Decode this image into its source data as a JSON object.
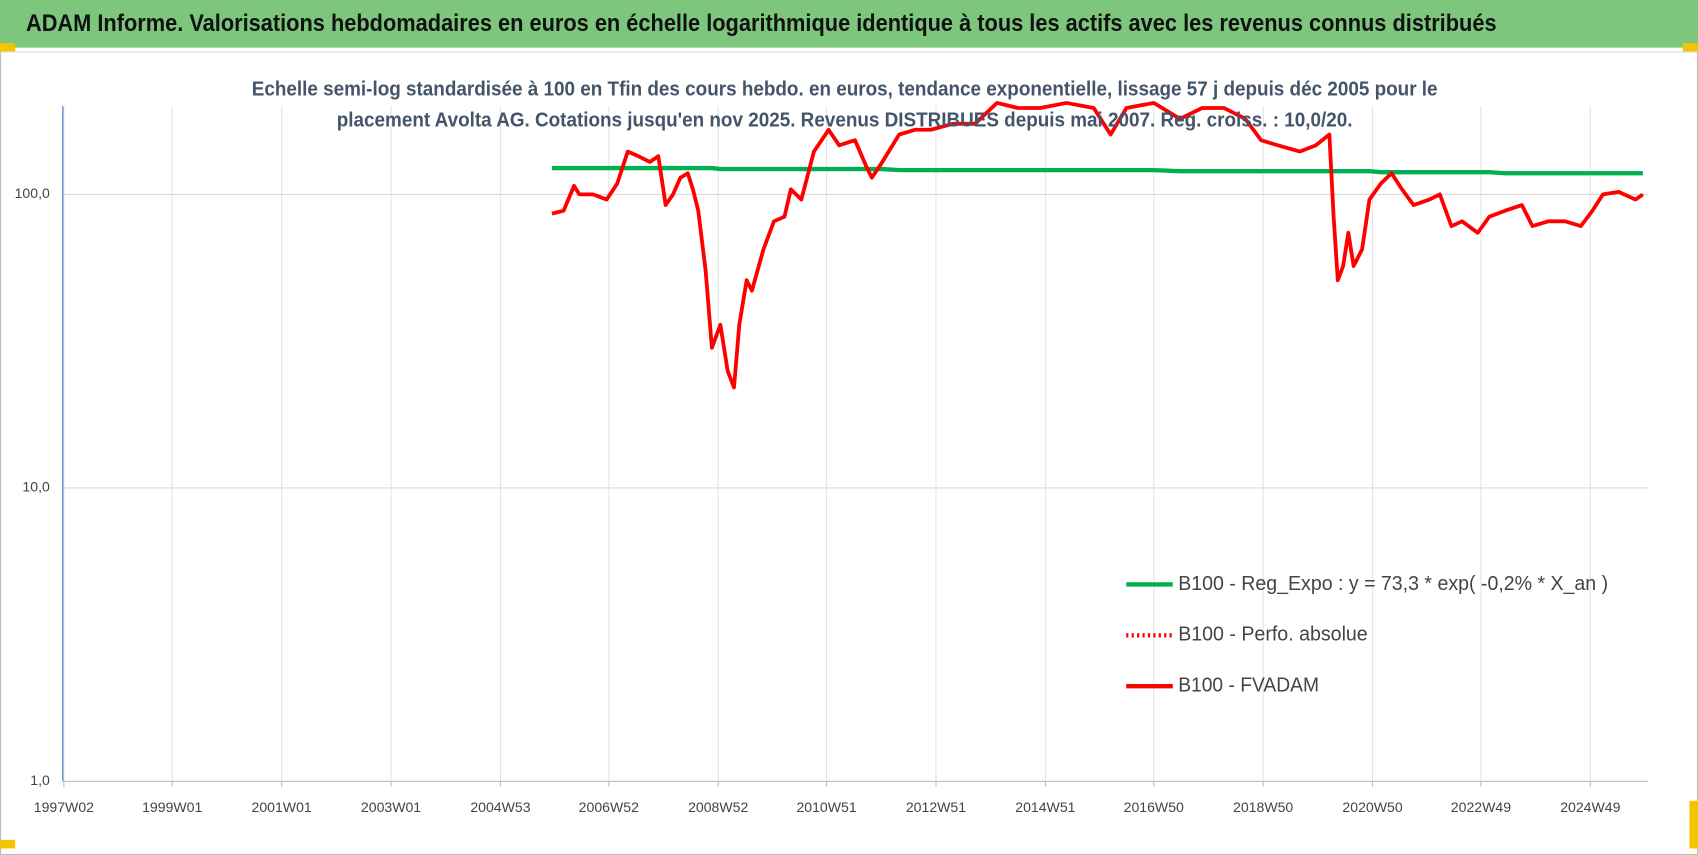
{
  "header": {
    "title": "ADAM Informe. Valorisations hebdomadaires en euros en échelle logarithmique identique à tous les actifs avec les revenus connus distribués"
  },
  "chart_data": {
    "type": "line",
    "title": [
      "Echelle semi-log standardisée à 100 en Tfin des cours hebdo. en euros, tendance exponentielle, lissage 57 j depuis déc 2005 pour le",
      "placement Avolta AG. Cotations jusqu'en nov 2025. Revenus DISTRIBUES depuis mai 2007. Reg. croiss. : 10,0/20."
    ],
    "log_scale_y": true,
    "grid": true,
    "legend": "lower right",
    "ylim": [
      1,
      200
    ],
    "yticks": [
      {
        "value": 1,
        "label": "1,0"
      },
      {
        "value": 10,
        "label": "10,0"
      },
      {
        "value": 100,
        "label": "100,0"
      }
    ],
    "xlim": [
      "1997W01",
      "2025W52"
    ],
    "xticks": [
      "1997W02",
      "1999W01",
      "2001W01",
      "2003W01",
      "2004W53",
      "2006W52",
      "2008W52",
      "2010W51",
      "2012W51",
      "2014W51",
      "2016W50",
      "2018W50",
      "2020W50",
      "2022W49",
      "2024W49"
    ],
    "x": [
      "2005W50",
      "2006W09",
      "2006W19",
      "2006W24",
      "2006W37",
      "2006W50",
      "2007W08",
      "2007W18",
      "2007W28",
      "2007W39",
      "2007W47",
      "2008W02",
      "2008W09",
      "2008W16",
      "2008W23",
      "2008W28",
      "2008W33",
      "2008W40",
      "2008W46",
      "2009W02",
      "2009W09",
      "2009W15",
      "2009W20",
      "2009W27",
      "2009W32",
      "2009W43",
      "2010W01",
      "2010W11",
      "2010W17",
      "2010W27",
      "2010W39",
      "2011W01",
      "2011W11",
      "2011W26",
      "2011W37",
      "2011W42",
      "2011W52",
      "2012W16",
      "2012W31",
      "2012W46",
      "2013W15",
      "2013W36",
      "2014W05",
      "2014W25",
      "2014W46",
      "2015W19",
      "2015W45",
      "2016W09",
      "2016W24",
      "2016W50",
      "2017W23",
      "2017W44",
      "2018W13",
      "2018W33",
      "2018W48",
      "2019W12",
      "2019W33",
      "2019W48",
      "2020W09",
      "2020W13",
      "2020W17",
      "2020W22",
      "2020W27",
      "2020W32",
      "2020W40",
      "2020W47",
      "2021W06",
      "2021W16",
      "2021W26",
      "2021W37",
      "2021W52",
      "2022W10",
      "2022W21",
      "2022W31",
      "2022W46",
      "2023W05",
      "2023W20",
      "2023W36",
      "2023W46",
      "2024W09",
      "2024W25",
      "2024W40",
      "2024W51",
      "2025W09",
      "2025W24",
      "2025W40",
      "2025W47"
    ],
    "series": [
      {
        "name": "B100 - Reg_Expo : y = 73,3 * exp( -0,2% *  X_an )",
        "color": "#00b050",
        "style": "solid",
        "values": [
          123,
          123,
          123,
          123,
          123,
          123,
          123,
          123,
          123,
          123,
          123,
          123,
          123,
          123,
          123,
          123,
          123,
          123,
          123,
          122,
          122,
          122,
          122,
          122,
          122,
          122,
          122,
          122,
          122,
          122,
          122,
          122,
          122,
          122,
          122,
          122,
          122,
          121,
          121,
          121,
          121,
          121,
          121,
          121,
          121,
          121,
          121,
          121,
          121,
          121,
          120,
          120,
          120,
          120,
          120,
          120,
          120,
          120,
          120,
          120,
          120,
          120,
          120,
          120,
          120,
          120,
          119,
          119,
          119,
          119,
          119,
          119,
          119,
          119,
          119,
          119,
          118,
          118,
          118,
          118,
          118,
          118,
          118,
          118,
          118,
          118,
          118
        ]
      },
      {
        "name": "B100 - Perfo. absolue",
        "color": "#ff0000",
        "style": "dotted",
        "values": [
          null,
          null,
          null,
          null,
          null,
          null,
          null,
          null,
          null,
          null,
          null,
          null,
          null,
          null,
          null,
          null,
          null,
          null,
          null,
          null,
          null,
          null,
          null,
          null,
          null,
          null,
          null,
          null,
          null,
          null,
          null,
          null,
          null,
          null,
          null,
          null,
          null,
          null,
          null,
          null,
          null,
          null,
          null,
          null,
          null,
          null,
          null,
          null,
          null,
          null,
          null,
          null,
          null,
          null,
          null,
          null,
          null,
          null,
          null,
          null,
          null,
          null,
          null,
          null,
          null,
          null,
          null,
          null,
          null,
          null,
          null,
          null,
          null,
          null,
          null,
          null,
          null,
          null,
          null,
          null,
          null,
          null,
          null,
          null,
          null,
          null,
          null
        ]
      },
      {
        "name": "B100 - FVADAM",
        "color": "#ff0000",
        "style": "solid",
        "values": [
          86,
          88,
          107,
          100,
          100,
          96,
          109,
          140,
          135,
          129,
          135,
          92,
          100,
          114,
          118,
          104,
          88,
          55,
          30,
          36,
          25,
          22,
          36,
          51,
          47,
          65,
          81,
          84,
          104,
          96,
          140,
          166,
          147,
          153,
          124,
          114,
          129,
          160,
          166,
          166,
          174,
          174,
          205,
          197,
          197,
          205,
          197,
          160,
          197,
          205,
          181,
          197,
          197,
          181,
          153,
          147,
          140,
          147,
          160,
          84,
          51,
          57,
          74,
          57,
          65,
          96,
          109,
          118,
          104,
          92,
          96,
          100,
          78,
          81,
          74,
          84,
          88,
          92,
          78,
          81,
          81,
          78,
          88,
          100,
          102,
          96,
          100
        ]
      }
    ]
  }
}
